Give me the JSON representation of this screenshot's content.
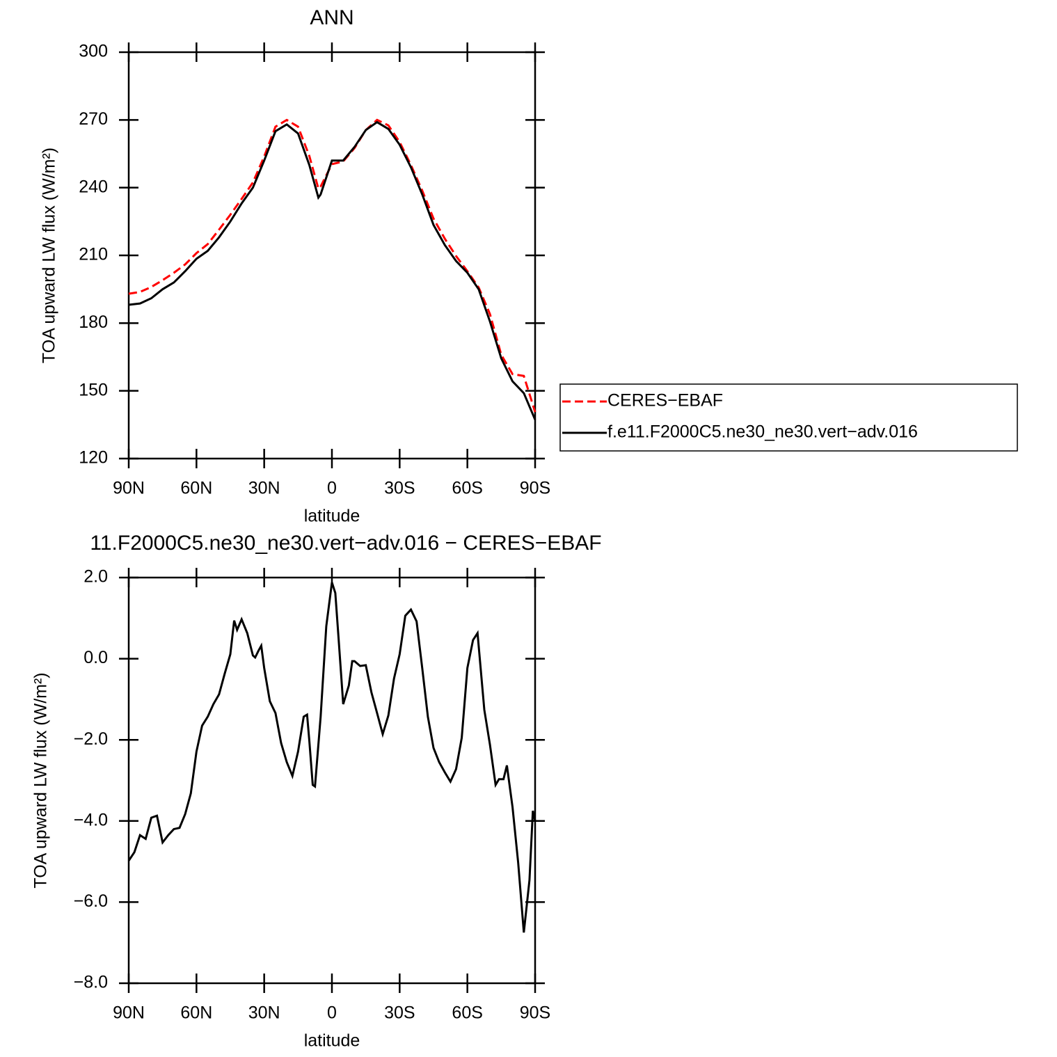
{
  "chart_data": [
    {
      "type": "line",
      "title": "ANN",
      "xlabel": "latitude",
      "ylabel": "TOA upward LW flux (W/m²)",
      "x": [
        90,
        85,
        80,
        75,
        70,
        65,
        60,
        55,
        50,
        45,
        40,
        35,
        30,
        25,
        20,
        15,
        10,
        6,
        5,
        0,
        -5,
        -10,
        -15,
        -20,
        -25,
        -30,
        -35,
        -40,
        -45,
        -50,
        -55,
        -60,
        -65,
        -70,
        -75,
        -80,
        -85,
        -90
      ],
      "series": [
        {
          "name": "CERES−EBAF",
          "color": "#ff0000",
          "dashed": true,
          "values": [
            193,
            193.8,
            196,
            199,
            202.3,
            206,
            211,
            215,
            221.4,
            228,
            235,
            242.3,
            253.8,
            267,
            270,
            267,
            254,
            239.6,
            240.5,
            250.4,
            251.6,
            257.5,
            265.5,
            270,
            267.6,
            260.2,
            250,
            238.7,
            226.3,
            217.4,
            209.7,
            203,
            195.8,
            184,
            166,
            157.4,
            156.6,
            140.6
          ]
        },
        {
          "name": "f.e11.F2000C5.ne30_ne30.vert−adv.016",
          "color": "#000000",
          "dashed": false,
          "values": [
            188.1,
            188.7,
            191,
            195,
            198,
            203,
            208.5,
            212,
            218,
            225,
            233,
            240,
            252,
            265,
            268,
            264,
            250,
            235.6,
            237,
            252,
            252,
            258,
            265.5,
            269,
            266,
            259,
            249,
            237,
            223.5,
            214.6,
            207.5,
            202.3,
            195,
            180.7,
            164.4,
            154.2,
            149,
            137.2
          ]
        }
      ],
      "xlim": [
        90,
        -90
      ],
      "xticks": [
        {
          "value": 90,
          "label": "90N"
        },
        {
          "value": 60,
          "label": "60N"
        },
        {
          "value": 30,
          "label": "30N"
        },
        0,
        {
          "value": -30,
          "label": "30S"
        },
        {
          "value": -60,
          "label": "60S"
        },
        {
          "value": -90,
          "label": "90S"
        }
      ],
      "ylim": [
        120,
        300
      ],
      "yticks": [
        120,
        150,
        180,
        210,
        240,
        270,
        300
      ],
      "legend": "right"
    },
    {
      "type": "line",
      "title": "11.F2000C5.ne30_ne30.vert−adv.016 − CERES−EBAF",
      "xlabel": "latitude",
      "ylabel": "TOA upward LW flux (W/m²)",
      "x": [
        90,
        87.5,
        85,
        82.5,
        80,
        77.5,
        75,
        72.5,
        70,
        67.5,
        65,
        62.5,
        60,
        57.5,
        55,
        52.5,
        50,
        47.5,
        45,
        43.3,
        42,
        40,
        37.5,
        35,
        34,
        32.5,
        31.3,
        30,
        27.5,
        25,
        22.5,
        20,
        17.5,
        15,
        12.5,
        11,
        10,
        8.5,
        7.5,
        5,
        2.5,
        0,
        -1.5,
        -3,
        -5,
        -7.5,
        -9,
        -10,
        -12.5,
        -15,
        -17.5,
        -20,
        -22.5,
        -25,
        -27.5,
        -30,
        -32.5,
        -35,
        -37.5,
        -40,
        -42.5,
        -45,
        -47.5,
        -50,
        -52.5,
        -55,
        -57.5,
        -60,
        -62.5,
        -64.5,
        -67.5,
        -70,
        -72.5,
        -74,
        -76,
        -77.5,
        -80,
        -82.5,
        -85,
        -87.5,
        -89,
        -90
      ],
      "series": [
        {
          "color": "#000000",
          "dashed": false,
          "values": [
            -4.98,
            -4.77,
            -4.35,
            -4.44,
            -3.92,
            -3.87,
            -4.53,
            -4.35,
            -4.2,
            -4.17,
            -3.83,
            -3.32,
            -2.29,
            -1.65,
            -1.43,
            -1.12,
            -0.88,
            -0.37,
            0.11,
            0.94,
            0.71,
            0.97,
            0.63,
            0.08,
            0.03,
            0.2,
            0.32,
            -0.23,
            -1.05,
            -1.34,
            -2.08,
            -2.55,
            -2.89,
            -2.29,
            -1.43,
            -1.38,
            -2.03,
            -3.11,
            -3.15,
            -1.43,
            0.8,
            1.88,
            1.62,
            0.46,
            -1.12,
            -0.66,
            -0.06,
            -0.06,
            -0.18,
            -0.16,
            -0.83,
            -1.34,
            -1.86,
            -1.4,
            -0.49,
            0.11,
            1.06,
            1.21,
            0.92,
            -0.23,
            -1.43,
            -2.2,
            -2.55,
            -2.8,
            -3.03,
            -2.72,
            -1.95,
            -0.23,
            0.46,
            0.63,
            -1.26,
            -2.12,
            -3.11,
            -2.97,
            -2.97,
            -2.63,
            -3.66,
            -5.03,
            -6.75,
            -5.46,
            -3.75,
            -4.0
          ]
        }
      ],
      "xlim": [
        90,
        -90
      ],
      "xticks": [
        {
          "value": 90,
          "label": "90N"
        },
        {
          "value": 60,
          "label": "60N"
        },
        {
          "value": 30,
          "label": "30N"
        },
        0,
        {
          "value": -30,
          "label": "30S"
        },
        {
          "value": -60,
          "label": "60S"
        },
        {
          "value": -90,
          "label": "90S"
        }
      ],
      "ylim": [
        -8,
        2
      ],
      "yticks": [
        {
          "value": -8,
          "label": "−8.0"
        },
        {
          "value": -6,
          "label": "−6.0"
        },
        {
          "value": -4,
          "label": "−4.0"
        },
        {
          "value": -2,
          "label": "−2.0"
        },
        {
          "value": 0,
          "label": "0.0"
        },
        {
          "value": 2,
          "label": "2.0"
        }
      ]
    }
  ]
}
